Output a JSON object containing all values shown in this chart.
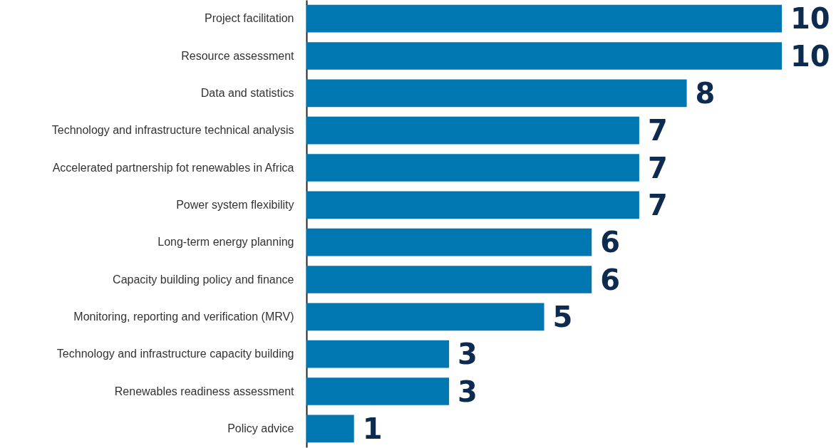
{
  "chart_data": {
    "type": "bar",
    "orientation": "horizontal",
    "categories": [
      "Project facilitation",
      "Resource assessment",
      "Data and statistics",
      "Technology and infrastructure technical analysis",
      "Accelerated partnership fot renewables in Africa",
      "Power system flexibility",
      "Long-term energy planning",
      "Capacity building policy and finance",
      "Monitoring, reporting and verification (MRV)",
      "Technology and infrastructure capacity building",
      "Renewables readiness assessment",
      "Policy advice"
    ],
    "values": [
      10,
      10,
      8,
      7,
      7,
      7,
      6,
      6,
      5,
      3,
      3,
      1
    ],
    "color": "#0077b0",
    "data_labels": true
  }
}
